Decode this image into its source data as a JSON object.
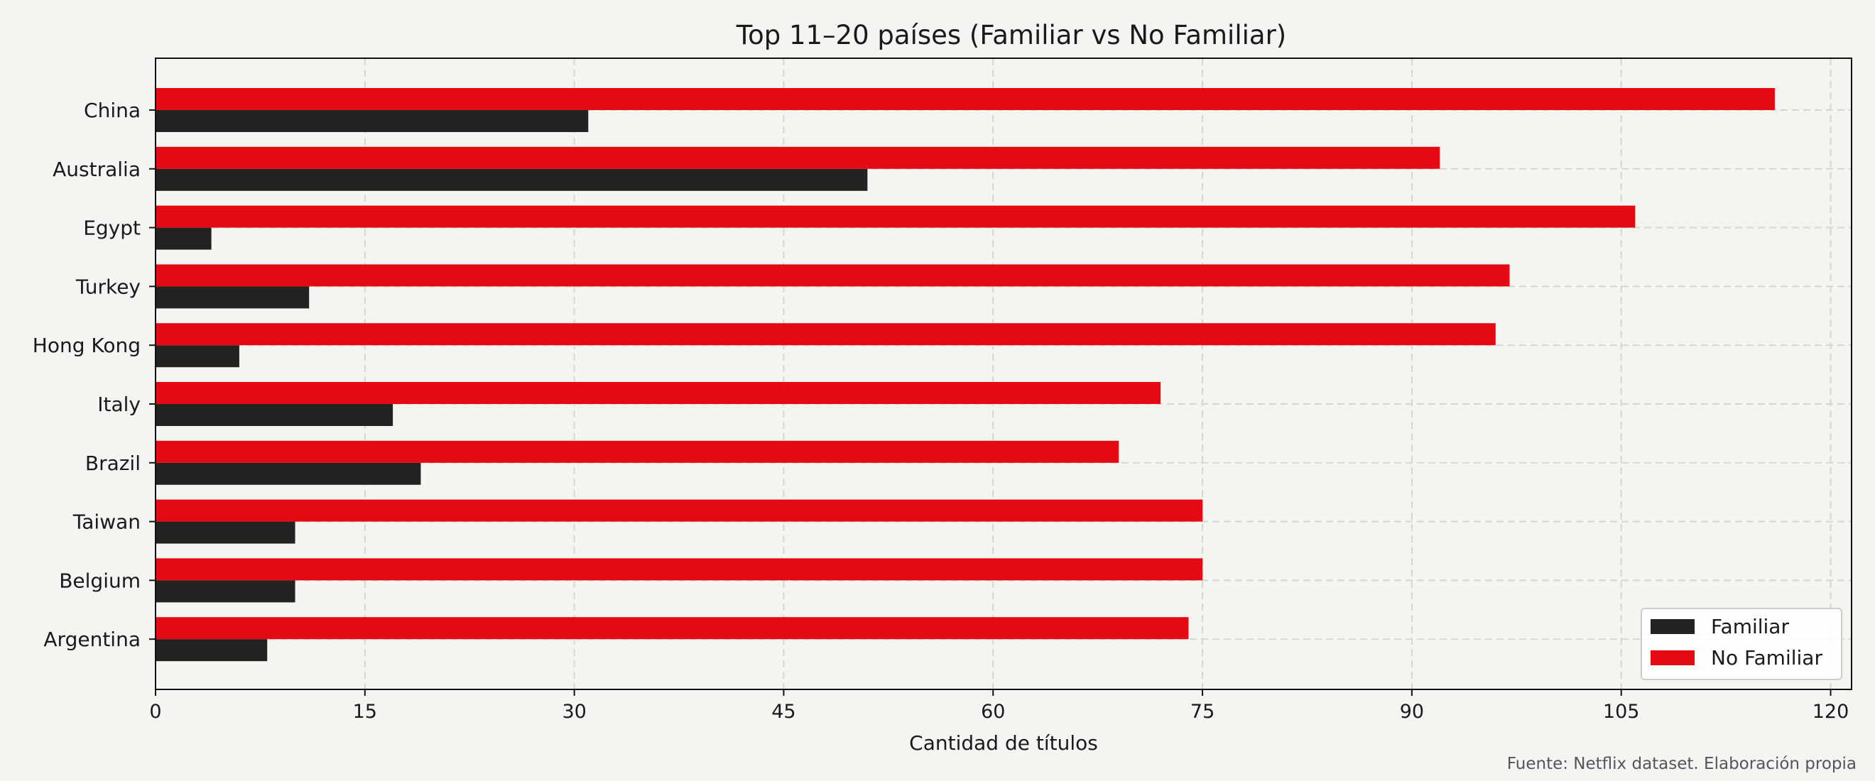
{
  "chart_data": {
    "type": "bar",
    "orientation": "horizontal",
    "title": "Top 11–20 países (Familiar vs No Familiar)",
    "xlabel": "Cantidad de títulos",
    "ylabel": "",
    "xlim": [
      0,
      121.5
    ],
    "xticks": [
      0,
      15,
      30,
      45,
      60,
      75,
      90,
      105,
      120
    ],
    "categories": [
      "China",
      "Australia",
      "Egypt",
      "Turkey",
      "Hong Kong",
      "Italy",
      "Brazil",
      "Taiwan",
      "Belgium",
      "Argentina"
    ],
    "series": [
      {
        "name": "Familiar",
        "color": "#222220",
        "values": [
          31,
          51,
          4,
          11,
          6,
          17,
          19,
          10,
          10,
          8
        ]
      },
      {
        "name": "No Familiar",
        "color": "#e50914",
        "values": [
          116,
          92,
          106,
          97,
          96,
          72,
          69,
          75,
          75,
          74
        ]
      }
    ],
    "grid": true,
    "legend_position": "bottom-right",
    "source_note": "Fuente: Netflix dataset. Elaboración propia"
  }
}
